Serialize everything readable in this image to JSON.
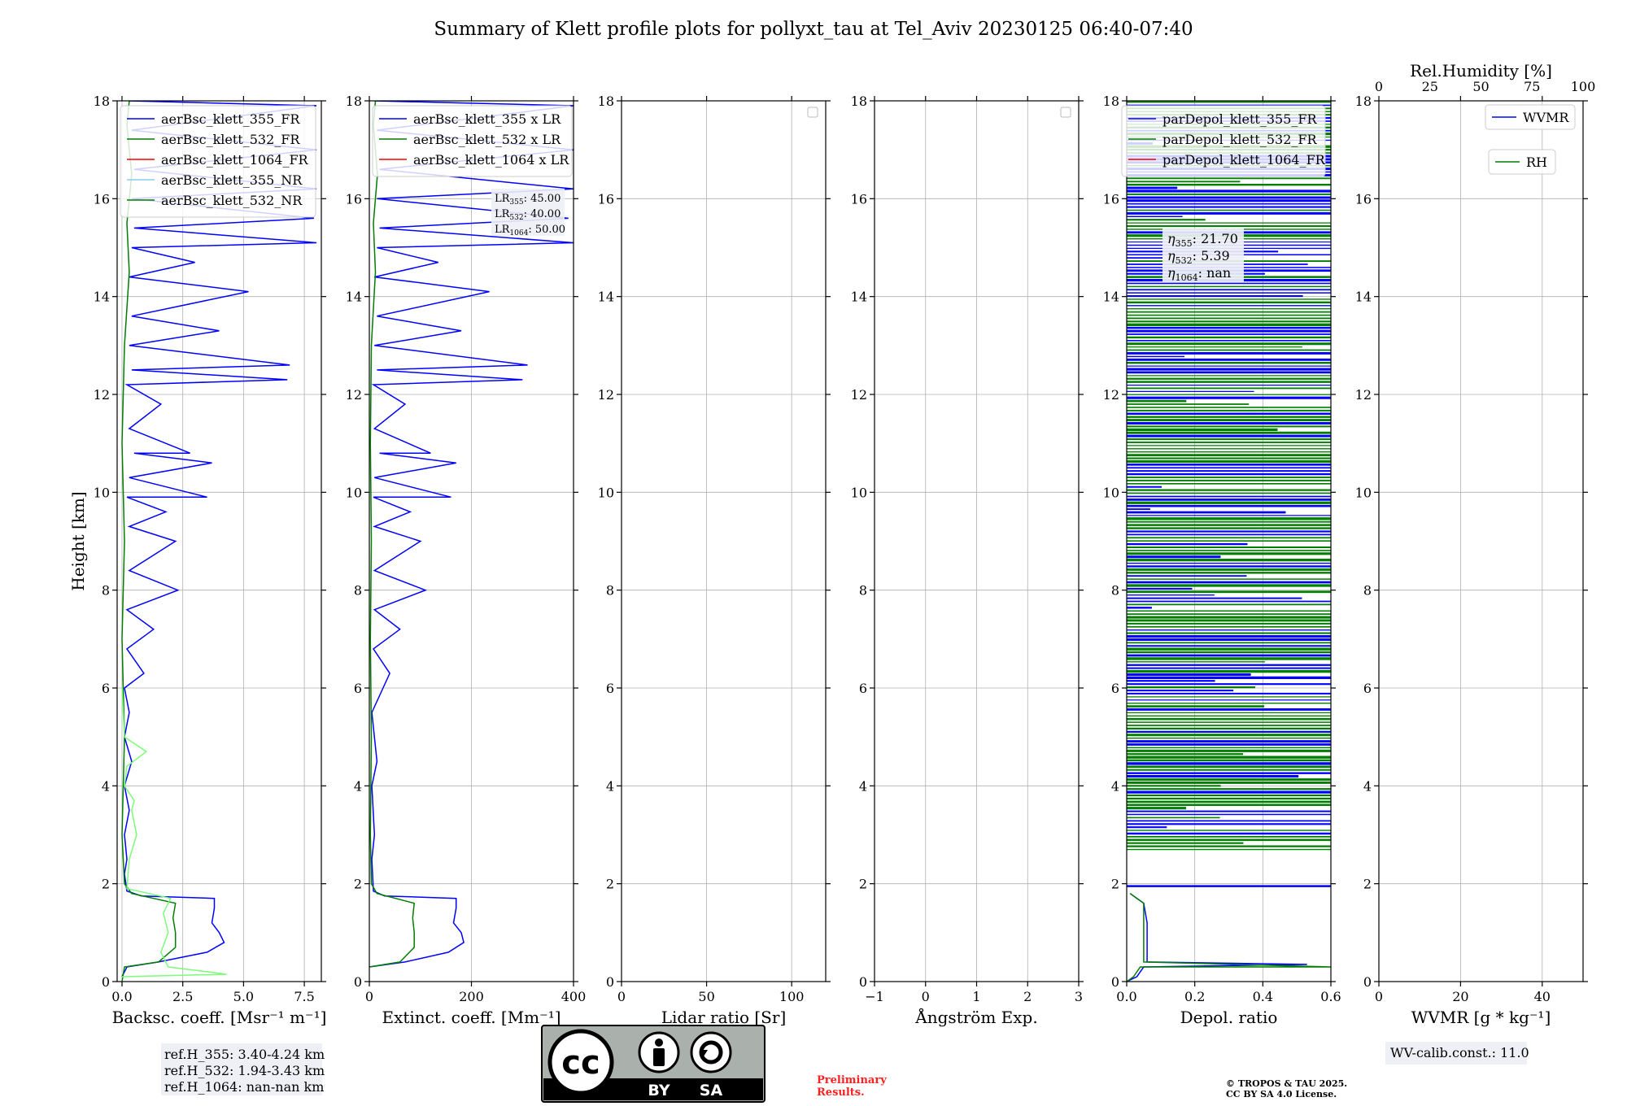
{
  "title": "Summary of Klett profile plots for pollyxt_tau at Tel_Aviv 20230125 06:40-07:40",
  "colors": {
    "c355": "#0000ff",
    "c532": "#007f00",
    "c1064": "#ff0000",
    "c355nr": "#87ceeb",
    "c532nr": "#7cfc79",
    "grid": "#b0b0b0"
  },
  "chart_data": [
    {
      "type": "line",
      "id": "bsc",
      "xlabel": "Backsc. coeff. [Msr⁻¹ m⁻¹]",
      "ylabel": "Height [km]",
      "xlim": [
        -0.2,
        8.2
      ],
      "ylim": [
        0,
        18
      ],
      "xticks": [
        0.0,
        2.5,
        5.0,
        7.5
      ],
      "xticklabels": [
        "0.0",
        "2.5",
        "5.0",
        "7.5"
      ],
      "yticks": [
        0,
        2,
        4,
        6,
        8,
        10,
        12,
        14,
        16,
        18
      ],
      "legend": [
        "aerBsc_klett_355_FR",
        "aerBsc_klett_532_FR",
        "aerBsc_klett_1064_FR",
        "aerBsc_klett_355_NR",
        "aerBsc_klett_532_NR"
      ],
      "series": [
        {
          "name": "aerBsc_klett_355_FR",
          "color": "c355",
          "points": [
            [
              0,
              0.1
            ],
            [
              0.2,
              0.3
            ],
            [
              1.5,
              0.4
            ],
            [
              3.5,
              0.6
            ],
            [
              4.2,
              0.8
            ],
            [
              4.0,
              1.0
            ],
            [
              3.7,
              1.2
            ],
            [
              3.8,
              1.5
            ],
            [
              3.8,
              1.7
            ],
            [
              0.8,
              1.75
            ],
            [
              0.2,
              1.85
            ],
            [
              0.1,
              2.2
            ],
            [
              0.2,
              2.5
            ],
            [
              0.1,
              3.0
            ],
            [
              0.3,
              3.5
            ],
            [
              0.1,
              4.0
            ],
            [
              0.4,
              4.5
            ],
            [
              0.1,
              5.0
            ],
            [
              0.3,
              5.5
            ],
            [
              0.1,
              6.0
            ],
            [
              0.9,
              6.3
            ],
            [
              0.2,
              6.8
            ],
            [
              1.3,
              7.2
            ],
            [
              0.2,
              7.6
            ],
            [
              2.3,
              8.0
            ],
            [
              0.3,
              8.4
            ],
            [
              2.2,
              9.0
            ],
            [
              0.3,
              9.3
            ],
            [
              1.8,
              9.6
            ],
            [
              0.2,
              9.9
            ],
            [
              3.5,
              9.9
            ],
            [
              0.3,
              10.3
            ],
            [
              3.7,
              10.6
            ],
            [
              0.5,
              10.8
            ],
            [
              2.8,
              10.8
            ],
            [
              0.3,
              11.3
            ],
            [
              1.6,
              11.8
            ],
            [
              0.2,
              12.2
            ],
            [
              6.8,
              12.3
            ],
            [
              0.4,
              12.5
            ],
            [
              6.9,
              12.6
            ],
            [
              0.3,
              13.0
            ],
            [
              4.0,
              13.3
            ],
            [
              0.4,
              13.6
            ],
            [
              5.2,
              14.1
            ],
            [
              0.3,
              14.4
            ],
            [
              3.0,
              14.7
            ],
            [
              0.4,
              15.0
            ],
            [
              8.0,
              15.1
            ],
            [
              0.5,
              15.4
            ],
            [
              7.9,
              15.6
            ],
            [
              0.4,
              16.0
            ],
            [
              8.0,
              16.2
            ],
            [
              0.5,
              16.6
            ],
            [
              8.0,
              17.0
            ],
            [
              0.4,
              17.4
            ],
            [
              8.0,
              17.9
            ],
            [
              0.3,
              18.0
            ]
          ]
        },
        {
          "name": "aerBsc_klett_532_FR",
          "color": "c532",
          "points": [
            [
              0,
              0.0
            ],
            [
              0.1,
              0.3
            ],
            [
              1.5,
              0.4
            ],
            [
              2.2,
              0.7
            ],
            [
              2.2,
              1.0
            ],
            [
              2.1,
              1.3
            ],
            [
              2.2,
              1.6
            ],
            [
              0.4,
              1.8
            ],
            [
              0.1,
              2.0
            ],
            [
              0.0,
              3.0
            ],
            [
              0.1,
              5.0
            ],
            [
              0.0,
              7.0
            ],
            [
              0.1,
              9.0
            ],
            [
              0.0,
              11.0
            ],
            [
              0.1,
              13.0
            ],
            [
              0.3,
              14.5
            ],
            [
              0.2,
              15.5
            ],
            [
              0.4,
              16.5
            ],
            [
              0.2,
              17.5
            ],
            [
              0.3,
              18.0
            ]
          ]
        },
        {
          "name": "aerBsc_klett_532_NR",
          "color": "c532nr",
          "points": [
            [
              0,
              0.1
            ],
            [
              4.3,
              0.15
            ],
            [
              1.9,
              0.3
            ],
            [
              1.6,
              0.6
            ],
            [
              1.9,
              1.0
            ],
            [
              1.7,
              1.4
            ],
            [
              2.0,
              1.7
            ],
            [
              0.2,
              1.9
            ],
            [
              0.3,
              2.5
            ],
            [
              0.6,
              3.0
            ],
            [
              0.4,
              3.5
            ],
            [
              0.5,
              3.7
            ],
            [
              0.1,
              4.0
            ],
            [
              0.2,
              4.4
            ],
            [
              1.0,
              4.7
            ],
            [
              0.1,
              5.0
            ],
            [
              0.0,
              6.0
            ]
          ]
        }
      ],
      "info_box": [
        "ref.H_355: 3.40-4.24 km",
        "ref.H_532: 1.94-3.43 km",
        "ref.H_1064: nan-nan km"
      ]
    },
    {
      "type": "line",
      "id": "ext",
      "xlabel": "Extinct. coeff. [Mm⁻¹]",
      "xlim": [
        0,
        400
      ],
      "ylim": [
        0,
        18
      ],
      "xticks": [
        0,
        200,
        400
      ],
      "xticklabels": [
        "0",
        "200",
        "400"
      ],
      "yticks": [
        0,
        2,
        4,
        6,
        8,
        10,
        12,
        14,
        16,
        18
      ],
      "legend": [
        "aerBsc_klett_355 x LR",
        "aerBsc_klett_532 x LR",
        "aerBsc_klett_1064 x LR"
      ],
      "lr_annotation": {
        "LR355": "LR355: 45.00",
        "LR532": "LR532: 40.00",
        "LR1064": "LR1064: 50.00"
      },
      "series": [
        {
          "name": "aerBsc_klett_355 x LR",
          "color": "c355",
          "points": [
            [
              0,
              0.3
            ],
            [
              70,
              0.4
            ],
            [
              155,
              0.6
            ],
            [
              185,
              0.8
            ],
            [
              180,
              1.0
            ],
            [
              165,
              1.2
            ],
            [
              170,
              1.5
            ],
            [
              170,
              1.7
            ],
            [
              30,
              1.75
            ],
            [
              8,
              1.85
            ],
            [
              5,
              2.5
            ],
            [
              10,
              3.0
            ],
            [
              5,
              4.0
            ],
            [
              15,
              4.5
            ],
            [
              5,
              5.5
            ],
            [
              40,
              6.3
            ],
            [
              8,
              6.8
            ],
            [
              60,
              7.2
            ],
            [
              10,
              7.6
            ],
            [
              110,
              8.0
            ],
            [
              10,
              8.4
            ],
            [
              100,
              9.0
            ],
            [
              10,
              9.3
            ],
            [
              80,
              9.6
            ],
            [
              8,
              9.9
            ],
            [
              160,
              9.9
            ],
            [
              10,
              10.3
            ],
            [
              170,
              10.6
            ],
            [
              20,
              10.8
            ],
            [
              120,
              10.8
            ],
            [
              10,
              11.3
            ],
            [
              70,
              11.8
            ],
            [
              8,
              12.2
            ],
            [
              300,
              12.3
            ],
            [
              15,
              12.5
            ],
            [
              310,
              12.6
            ],
            [
              10,
              13.0
            ],
            [
              180,
              13.3
            ],
            [
              15,
              13.6
            ],
            [
              235,
              14.1
            ],
            [
              10,
              14.4
            ],
            [
              135,
              14.7
            ],
            [
              15,
              15.0
            ],
            [
              400,
              15.1
            ],
            [
              20,
              15.4
            ],
            [
              390,
              15.6
            ],
            [
              15,
              16.0
            ],
            [
              400,
              16.2
            ],
            [
              20,
              16.6
            ],
            [
              400,
              17.0
            ],
            [
              15,
              17.4
            ],
            [
              400,
              17.9
            ],
            [
              10,
              18.0
            ]
          ]
        },
        {
          "name": "aerBsc_klett_532 x LR",
          "color": "c532",
          "points": [
            [
              0,
              0.3
            ],
            [
              60,
              0.4
            ],
            [
              88,
              0.7
            ],
            [
              88,
              1.0
            ],
            [
              85,
              1.3
            ],
            [
              88,
              1.6
            ],
            [
              15,
              1.8
            ],
            [
              4,
              2.0
            ],
            [
              2,
              3.0
            ],
            [
              4,
              5.0
            ],
            [
              2,
              7.0
            ],
            [
              4,
              9.0
            ],
            [
              2,
              11.0
            ],
            [
              4,
              13.0
            ],
            [
              12,
              14.5
            ],
            [
              8,
              15.5
            ],
            [
              16,
              16.5
            ],
            [
              8,
              17.5
            ],
            [
              12,
              18.0
            ]
          ]
        }
      ]
    },
    {
      "type": "line",
      "id": "lr",
      "xlabel": "Lidar ratio [Sr]",
      "xlim": [
        0,
        120
      ],
      "ylim": [
        0,
        18
      ],
      "xticks": [
        0,
        50,
        100
      ],
      "xticklabels": [
        "0",
        "50",
        "100"
      ],
      "yticks": [
        0,
        2,
        4,
        6,
        8,
        10,
        12,
        14,
        16,
        18
      ],
      "series": []
    },
    {
      "type": "line",
      "id": "ang",
      "xlabel": "Ångström Exp.",
      "xlim": [
        -1,
        3
      ],
      "ylim": [
        0,
        18
      ],
      "xticks": [
        -1,
        0,
        1,
        2,
        3
      ],
      "xticklabels": [
        "−1",
        "0",
        "1",
        "2",
        "3"
      ],
      "yticks": [
        0,
        2,
        4,
        6,
        8,
        10,
        12,
        14,
        16,
        18
      ],
      "series": []
    },
    {
      "type": "line",
      "id": "depol",
      "xlabel": "Depol. ratio",
      "xlim": [
        0,
        0.6
      ],
      "ylim": [
        0,
        18
      ],
      "xticks": [
        0.0,
        0.2,
        0.4,
        0.6
      ],
      "xticklabels": [
        "0.0",
        "0.2",
        "0.4",
        "0.6"
      ],
      "yticks": [
        0,
        2,
        4,
        6,
        8,
        10,
        12,
        14,
        16,
        18
      ],
      "legend": [
        "parDepol_klett_355_FR",
        "parDepol_klett_532_FR",
        "parDepol_klett_1064_FR"
      ],
      "eta_annotation": {
        "eta355": "21.70",
        "eta532": "5.39",
        "eta1064": "nan"
      },
      "series": [
        {
          "name": "parDepol_klett_355_FR",
          "color": "c355",
          "points": [
            [
              0.0,
              0.0
            ],
            [
              0.03,
              0.1
            ],
            [
              0.05,
              0.3
            ],
            [
              0.53,
              0.35
            ],
            [
              0.06,
              0.4
            ],
            [
              0.06,
              0.8
            ],
            [
              0.06,
              1.2
            ],
            [
              0.05,
              1.6
            ],
            [
              0.01,
              1.8
            ]
          ]
        },
        {
          "name": "parDepol_klett_532_FR",
          "color": "c532",
          "points": [
            [
              0.0,
              0.0
            ],
            [
              0.02,
              0.1
            ],
            [
              0.04,
              0.3
            ],
            [
              0.6,
              0.3
            ],
            [
              0.05,
              0.4
            ],
            [
              0.05,
              0.8
            ],
            [
              0.05,
              1.2
            ],
            [
              0.05,
              1.6
            ],
            [
              0.01,
              1.8
            ]
          ]
        }
      ],
      "hatch_range": [
        2.7,
        18
      ]
    },
    {
      "type": "line",
      "id": "wv",
      "xlabel": "WVMR [g * kg⁻¹]",
      "xlim": [
        0,
        50
      ],
      "ylim": [
        0,
        18
      ],
      "xticks": [
        0,
        20,
        40
      ],
      "xticklabels": [
        "0",
        "20",
        "40"
      ],
      "yticks": [
        0,
        2,
        4,
        6,
        8,
        10,
        12,
        14,
        16,
        18
      ],
      "top_xlabel": "Rel.Humidity [%]",
      "top_xlim": [
        0,
        100
      ],
      "top_xticks": [
        0,
        25,
        50,
        75,
        100
      ],
      "top_xticklabels": [
        "0",
        "25",
        "50",
        "75",
        "100"
      ],
      "legend": [
        "WVMR",
        "RH"
      ],
      "info_box": [
        "WV-calib.const.: 11.0"
      ],
      "series": []
    }
  ],
  "license_badge": {
    "cc": "cc",
    "by": "BY",
    "sa": "SA"
  },
  "preliminary": [
    "Preliminary",
    "Results."
  ],
  "copyright": [
    "© TROPOS & TAU 2025.",
    "CC BY SA 4.0 License."
  ]
}
